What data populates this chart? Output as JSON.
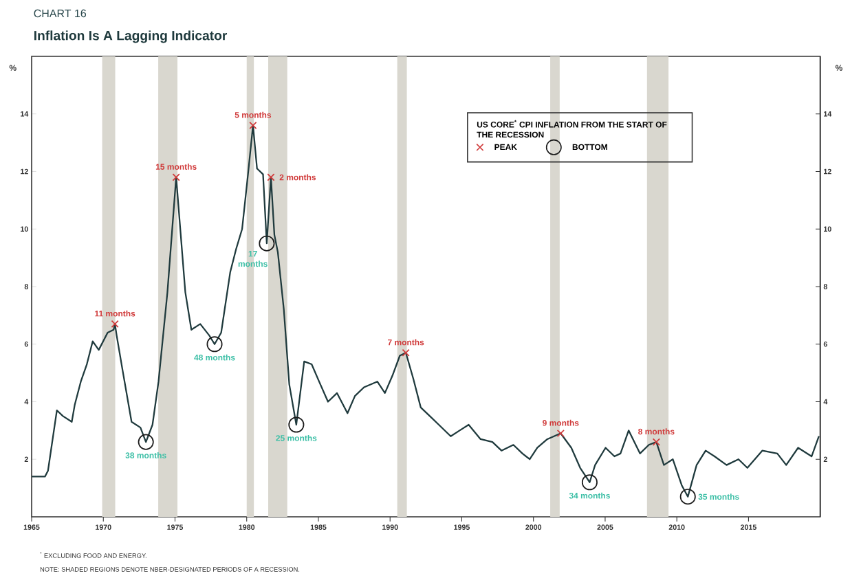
{
  "chart_data": {
    "type": "line",
    "subtitle": "CHART 16",
    "title": "Inflation Is A Lagging Indicator",
    "ylabel": "%",
    "y2label": "%",
    "legend_title": "US CORE$^{*}$ CPI INFLATION FROM THE START OF THE RECESSION",
    "legend": "top right",
    "xlim": [
      1965,
      2020
    ],
    "xticks": [
      1965,
      1970,
      1975,
      1980,
      1985,
      1990,
      1995,
      2000,
      2005,
      2010,
      2015
    ],
    "ylim": [
      0,
      16
    ],
    "yticks": [
      2,
      4,
      6,
      8,
      10,
      12,
      14
    ],
    "y2lim": [
      0,
      16
    ],
    "y2ticks": [
      2,
      4,
      6,
      8,
      10,
      12,
      14
    ],
    "bands": [
      {
        "axis": "x",
        "from": 1969.92,
        "to": 1970.83,
        "color": "#d9d7cf"
      },
      {
        "axis": "x",
        "from": 1973.83,
        "to": 1975.17,
        "color": "#d9d7cf"
      },
      {
        "axis": "x",
        "from": 1980.0,
        "to": 1980.5,
        "color": "#d9d7cf"
      },
      {
        "axis": "x",
        "from": 1981.5,
        "to": 1982.83,
        "color": "#d9d7cf"
      },
      {
        "axis": "x",
        "from": 1990.5,
        "to": 1991.17,
        "color": "#d9d7cf"
      },
      {
        "axis": "x",
        "from": 2001.17,
        "to": 2001.83,
        "color": "#d9d7cf"
      },
      {
        "axis": "x",
        "from": 2007.92,
        "to": 2009.42,
        "color": "#d9d7cf"
      }
    ],
    "series": [
      {
        "color": "#1f3a3d",
        "marker": "none",
        "line_style": "solid",
        "x": [
          1965.0,
          1965.93,
          1966.14,
          1966.76,
          1967.18,
          1967.8,
          1968.01,
          1968.43,
          1968.85,
          1969.26,
          1969.68,
          1970.3,
          1970.72,
          1970.81,
          1970.93,
          1971.34,
          1971.97,
          1972.59,
          1972.97,
          1973.43,
          1973.85,
          1974.47,
          1975.08,
          1975.72,
          1976.14,
          1976.76,
          1977.39,
          1977.76,
          1978.22,
          1978.85,
          1979.26,
          1979.68,
          1980.09,
          1980.44,
          1980.72,
          1981.14,
          1981.4,
          1981.69,
          1981.93,
          1982.17,
          1982.59,
          1982.97,
          1983.46,
          1984.01,
          1984.53,
          1985.05,
          1985.67,
          1986.3,
          1987.03,
          1987.55,
          1988.18,
          1989.11,
          1989.64,
          1990.16,
          1990.68,
          1991.1,
          1991.62,
          1992.14,
          1992.77,
          1993.4,
          1994.23,
          1994.85,
          1995.48,
          1996.31,
          1997.14,
          1997.77,
          1998.6,
          1999.23,
          1999.74,
          2000.27,
          2000.97,
          2001.9,
          2002.64,
          2003.26,
          2003.92,
          2004.3,
          2005.03,
          2005.65,
          2006.07,
          2006.64,
          2007.43,
          2008.05,
          2008.57,
          2009.1,
          2009.72,
          2010.34,
          2010.77,
          2011.38,
          2012.01,
          2012.63,
          2013.47,
          2014.3,
          2014.92,
          2015.96,
          2017.01,
          2017.63,
          2018.46,
          2019.4,
          2019.91
        ],
        "values": [
          1.4,
          1.4,
          1.6,
          3.7,
          3.5,
          3.3,
          3.9,
          4.7,
          5.3,
          6.1,
          5.8,
          6.4,
          6.5,
          6.7,
          6.3,
          5.1,
          3.3,
          3.1,
          2.6,
          3.2,
          4.7,
          7.8,
          11.8,
          7.8,
          6.5,
          6.7,
          6.3,
          6.0,
          6.4,
          8.5,
          9.3,
          10.0,
          11.9,
          13.6,
          12.1,
          11.9,
          9.5,
          11.8,
          9.8,
          9.2,
          7.2,
          4.6,
          3.2,
          5.4,
          5.3,
          4.7,
          4.0,
          4.3,
          3.6,
          4.2,
          4.5,
          4.7,
          4.3,
          4.9,
          5.6,
          5.7,
          4.8,
          3.8,
          3.5,
          3.2,
          2.8,
          3.0,
          3.2,
          2.7,
          2.6,
          2.3,
          2.5,
          2.2,
          2.0,
          2.4,
          2.7,
          2.9,
          2.4,
          1.7,
          1.2,
          1.8,
          2.4,
          2.1,
          2.2,
          3.0,
          2.2,
          2.5,
          2.6,
          1.8,
          2.0,
          1.1,
          0.7,
          1.8,
          2.3,
          2.1,
          1.8,
          2.0,
          1.7,
          2.3,
          2.2,
          1.8,
          2.4,
          2.1,
          2.8
        ]
      },
      {
        "type": "scatter",
        "name": "PEAK",
        "color": "#d03a3a",
        "marker": "cross",
        "x": [
          1970.81,
          1975.08,
          1980.44,
          1981.69,
          1991.1,
          2001.9,
          2008.57
        ],
        "values": [
          6.7,
          11.8,
          13.6,
          11.8,
          5.7,
          2.9,
          2.6
        ]
      },
      {
        "type": "scatter",
        "name": "BOTTOM",
        "color": "#1a1a1a",
        "marker": "circle",
        "x": [
          1972.97,
          1977.76,
          1981.4,
          1983.46,
          2003.92,
          2010.77
        ],
        "values": [
          2.6,
          6.0,
          9.5,
          3.2,
          1.2,
          0.7
        ]
      }
    ],
    "annotations": [
      {
        "text": "11 months",
        "x": 1970.81,
        "y": 6.7
      },
      {
        "text": "15 months",
        "x": 1975.08,
        "y": 11.8
      },
      {
        "text": "5 months",
        "x": 1980.44,
        "y": 13.6
      },
      {
        "text": "2 months",
        "x": 1981.69,
        "y": 11.8
      },
      {
        "text": "7 months",
        "x": 1991.1,
        "y": 5.7
      },
      {
        "text": "9 months",
        "x": 2001.9,
        "y": 2.9
      },
      {
        "text": "8 months",
        "x": 2008.57,
        "y": 2.6
      },
      {
        "text": "38 months",
        "x": 1972.97,
        "y": 2.6
      },
      {
        "text": "48 months",
        "x": 1977.76,
        "y": 6.0
      },
      {
        "text": "17 months",
        "x": 1981.4,
        "y": 9.5
      },
      {
        "text": "25 months",
        "x": 1983.46,
        "y": 3.2
      },
      {
        "text": "34 months",
        "x": 2003.92,
        "y": 1.2
      },
      {
        "text": "35 months",
        "x": 2010.77,
        "y": 0.7
      },
      "$^{*}$ EXCLUDING FOOD AND ENERGY.",
      "NOTE: SHADED REGIONS DENOTE NBER-DESIGNATED PERIODS OF A RECESSION."
    ]
  }
}
